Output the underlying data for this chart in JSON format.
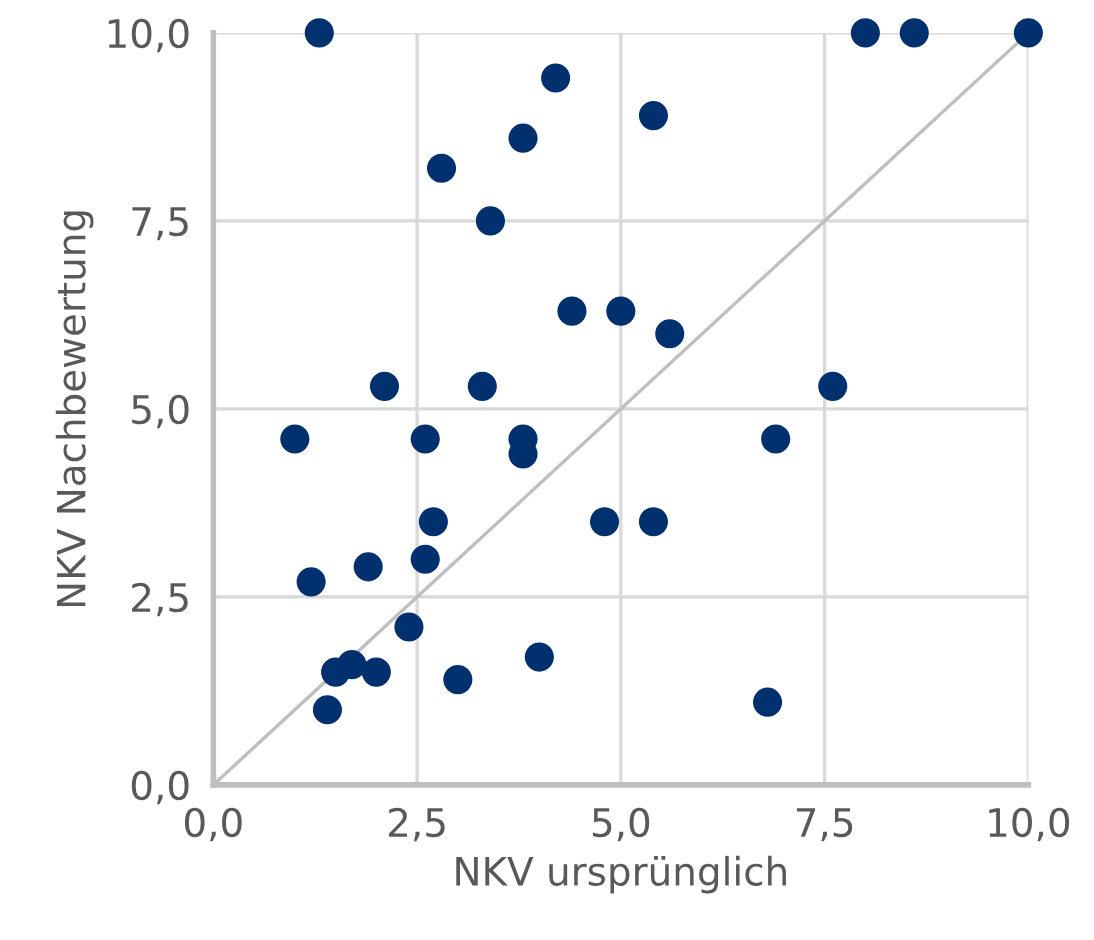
{
  "chart_data": {
    "type": "scatter",
    "xlabel": "NKV ursprünglich",
    "ylabel": "NKV Nachbewertung",
    "xlim": [
      0,
      10
    ],
    "ylim": [
      0,
      10
    ],
    "xticks": [
      {
        "value": 0,
        "label": "0,0"
      },
      {
        "value": 2.5,
        "label": "2,5"
      },
      {
        "value": 5,
        "label": "5,0"
      },
      {
        "value": 7.5,
        "label": "7,5"
      },
      {
        "value": 10,
        "label": "10,0"
      }
    ],
    "yticks": [
      {
        "value": 0,
        "label": "0,0"
      },
      {
        "value": 2.5,
        "label": "2,5"
      },
      {
        "value": 5,
        "label": "5,0"
      },
      {
        "value": 7.5,
        "label": "7,5"
      },
      {
        "value": 10,
        "label": "10,0"
      }
    ],
    "grid": true,
    "marker": "circle",
    "series": [
      {
        "type": "line",
        "color": "#bfbfbf",
        "x": [
          0,
          10
        ],
        "values": [
          0,
          10
        ],
        "marker": "none",
        "line_style": "solid"
      },
      {
        "color": "#00306e",
        "x": [
          1.3,
          4.2,
          3.8,
          2.8,
          3.4,
          4.4,
          5.0,
          2.1,
          3.3,
          8.0,
          8.6,
          10.0,
          5.4,
          5.6,
          7.6,
          1.0,
          2.6,
          3.8,
          3.8,
          6.9,
          2.7,
          4.8,
          5.4,
          1.9,
          2.6,
          1.2,
          2.4,
          1.7,
          1.5,
          2.0,
          3.0,
          4.0,
          1.4,
          6.8
        ],
        "values": [
          10.0,
          9.4,
          8.6,
          8.2,
          7.5,
          6.3,
          6.3,
          5.3,
          5.3,
          10.0,
          10.0,
          10.0,
          8.9,
          6.0,
          5.3,
          4.6,
          4.6,
          4.6,
          4.4,
          4.6,
          3.5,
          3.5,
          3.5,
          2.9,
          3.0,
          2.7,
          2.1,
          1.6,
          1.5,
          1.5,
          1.4,
          1.7,
          1.0,
          1.1
        ]
      }
    ]
  }
}
